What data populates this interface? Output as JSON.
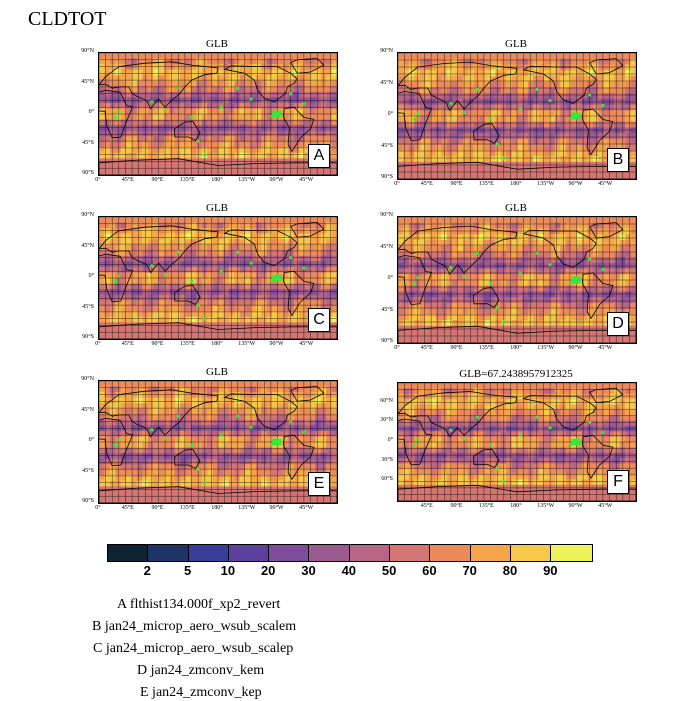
{
  "title": "CLDTOT",
  "panels": [
    {
      "title": "GLB",
      "letter": "A",
      "yticks": [
        "90°N",
        "45°N",
        "0°",
        "45°S",
        "90°S"
      ],
      "xticks": [
        "0°",
        "45°E",
        "90°E",
        "135°E",
        "180°",
        "135°W",
        "90°W",
        "45°W"
      ]
    },
    {
      "title": "GLB",
      "letter": "B",
      "yticks": [
        "90°N",
        "45°N",
        "0°",
        "45°S",
        "90°S"
      ],
      "xticks": [
        "0°",
        "45°E",
        "90°E",
        "135°E",
        "180°",
        "135°W",
        "90°W",
        "45°W"
      ]
    },
    {
      "title": "GLB",
      "letter": "C",
      "yticks": [
        "90°N",
        "45°N",
        "0°",
        "45°S",
        "90°S"
      ],
      "xticks": [
        "0°",
        "45°E",
        "90°E",
        "135°E",
        "180°",
        "135°W",
        "90°W",
        "45°W"
      ]
    },
    {
      "title": "GLB",
      "letter": "D",
      "yticks": [
        "90°N",
        "45°N",
        "0°",
        "45°S",
        "90°S"
      ],
      "xticks": [
        "0°",
        "45°E",
        "90°E",
        "135°E",
        "180°",
        "135°W",
        "90°W",
        "45°W"
      ]
    },
    {
      "title": "GLB",
      "letter": "E",
      "yticks": [
        "90°N",
        "45°N",
        "0°",
        "45°S",
        "90°S"
      ],
      "xticks": [
        "0°",
        "45°E",
        "90°E",
        "135°E",
        "180°",
        "135°W",
        "90°W",
        "45°W"
      ]
    },
    {
      "title": "GLB=67.2438957912325",
      "letter": "F",
      "yticks": [
        "60°N",
        "30°N",
        "0°",
        "30°S",
        "60°S"
      ],
      "xticks": [
        "45°E",
        "90°E",
        "135°E",
        "180°",
        "135°W",
        "90°W",
        "45°W"
      ]
    }
  ],
  "colorbar": {
    "colors": [
      "#0d2233",
      "#1c3468",
      "#3a3c9a",
      "#5b409e",
      "#7e4c9a",
      "#9b5a90",
      "#b76584",
      "#d37572",
      "#ec8a5c",
      "#f6a44a",
      "#f6c84a",
      "#eef25a"
    ],
    "labels": [
      "2",
      "5",
      "10",
      "20",
      "30",
      "40",
      "50",
      "60",
      "70",
      "80",
      "90"
    ]
  },
  "legend": [
    "A  flthist134.000f_xp2_revert",
    "B  jan24_microp_aero_wsub_scalem",
    "C  jan24_microp_aero_wsub_scalep",
    "D  jan24_zmconv_kem",
    "E  jan24_zmconv_kep"
  ]
}
